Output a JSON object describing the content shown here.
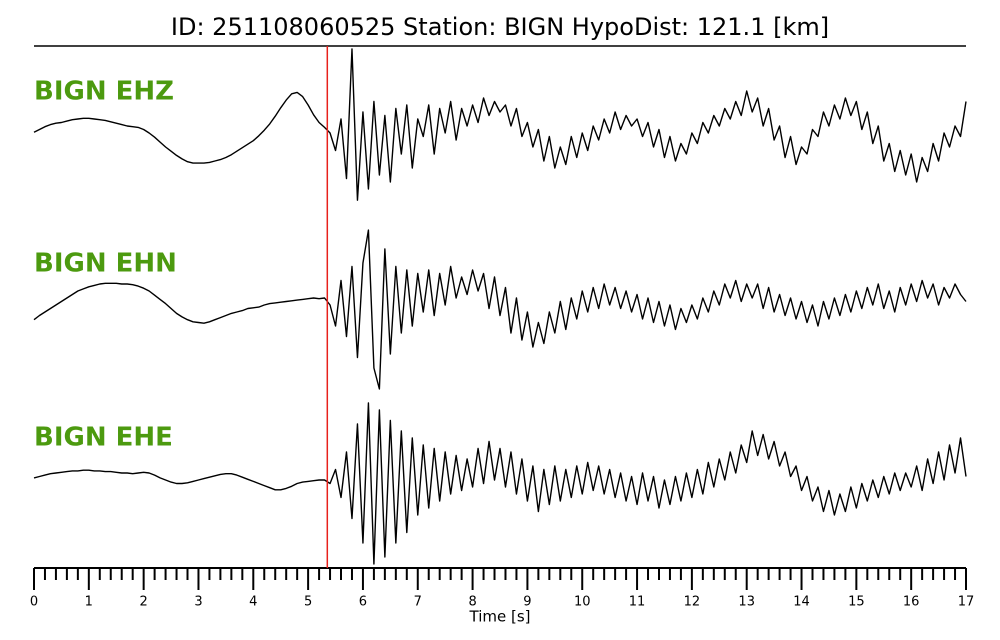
{
  "chart_data": {
    "type": "line",
    "title": "ID: 251108060525   Station: BIGN   HypoDist:   121.1 [km]",
    "xlabel": "Time [s]",
    "xlim": [
      0,
      17
    ],
    "xticks": [
      0,
      1,
      2,
      3,
      4,
      5,
      6,
      7,
      8,
      9,
      10,
      11,
      12,
      13,
      14,
      15,
      16,
      17
    ],
    "xminorticks": [
      0.2,
      0.4,
      0.6,
      0.8,
      1.2,
      1.4,
      1.6,
      1.8,
      2.2,
      2.4,
      2.6,
      2.8,
      3.2,
      3.4,
      3.6,
      3.8,
      4.2,
      4.4,
      4.6,
      4.8,
      5.2,
      5.4,
      5.6,
      5.8,
      6.2,
      6.4,
      6.6,
      6.8,
      7.2,
      7.4,
      7.6,
      7.8,
      8.2,
      8.4,
      8.6,
      8.8,
      9.2,
      9.4,
      9.6,
      9.8,
      10.2,
      10.4,
      10.6,
      10.8,
      11.2,
      11.4,
      11.6,
      11.8,
      12.2,
      12.4,
      12.6,
      12.8,
      13.2,
      13.4,
      13.6,
      13.8,
      14.2,
      14.4,
      14.6,
      14.8,
      15.2,
      15.4,
      15.6,
      15.8,
      16.2,
      16.4,
      16.6,
      16.8
    ],
    "pick_time": 5.35,
    "pick_color": "#e8211b",
    "label_color": "#4c9a0f",
    "x": [
      0,
      0.1,
      0.2,
      0.3,
      0.4,
      0.5,
      0.6,
      0.7,
      0.8,
      0.9,
      1,
      1.1,
      1.2,
      1.3,
      1.4,
      1.5,
      1.6,
      1.7,
      1.8,
      1.9,
      2,
      2.1,
      2.2,
      2.3,
      2.4,
      2.5,
      2.6,
      2.7,
      2.8,
      2.9,
      3,
      3.1,
      3.2,
      3.3,
      3.4,
      3.5,
      3.6,
      3.7,
      3.8,
      3.9,
      4,
      4.1,
      4.2,
      4.3,
      4.4,
      4.5,
      4.6,
      4.7,
      4.8,
      4.9,
      5,
      5.1,
      5.2,
      5.3,
      5.4,
      5.5,
      5.6,
      5.7,
      5.8,
      5.9,
      6,
      6.1,
      6.2,
      6.3,
      6.4,
      6.5,
      6.6,
      6.7,
      6.8,
      6.9,
      7,
      7.1,
      7.2,
      7.3,
      7.4,
      7.5,
      7.6,
      7.7,
      7.8,
      7.9,
      8,
      8.1,
      8.2,
      8.3,
      8.4,
      8.5,
      8.6,
      8.7,
      8.8,
      8.9,
      9,
      9.1,
      9.2,
      9.3,
      9.4,
      9.5,
      9.6,
      9.7,
      9.8,
      9.9,
      10,
      10.1,
      10.2,
      10.3,
      10.4,
      10.5,
      10.6,
      10.7,
      10.8,
      10.9,
      11,
      11.1,
      11.2,
      11.3,
      11.4,
      11.5,
      11.6,
      11.7,
      11.8,
      11.9,
      12,
      12.1,
      12.2,
      12.3,
      12.4,
      12.5,
      12.6,
      12.7,
      12.8,
      12.9,
      13,
      13.1,
      13.2,
      13.3,
      13.4,
      13.5,
      13.6,
      13.7,
      13.8,
      13.9,
      14,
      14.1,
      14.2,
      14.3,
      14.4,
      14.5,
      14.6,
      14.7,
      14.8,
      14.9,
      15,
      15.1,
      15.2,
      15.3,
      15.4,
      15.5,
      15.6,
      15.7,
      15.8,
      15.9,
      16,
      16.1,
      16.2,
      16.3,
      16.4,
      16.5,
      16.6,
      16.7,
      16.8,
      16.9,
      17
    ],
    "series": [
      {
        "name": "BIGN EHZ",
        "color": "#000000",
        "values": [
          0.11,
          0.15,
          0.19,
          0.22,
          0.24,
          0.25,
          0.27,
          0.29,
          0.3,
          0.31,
          0.31,
          0.3,
          0.29,
          0.28,
          0.26,
          0.24,
          0.22,
          0.2,
          0.19,
          0.18,
          0.15,
          0.1,
          0.04,
          -0.03,
          -0.1,
          -0.16,
          -0.22,
          -0.27,
          -0.31,
          -0.33,
          -0.33,
          -0.33,
          -0.32,
          -0.3,
          -0.28,
          -0.25,
          -0.21,
          -0.16,
          -0.11,
          -0.06,
          -0.01,
          0.06,
          0.14,
          0.23,
          0.34,
          0.46,
          0.57,
          0.66,
          0.68,
          0.62,
          0.5,
          0.36,
          0.25,
          0.18,
          0.1,
          -0.15,
          0.3,
          -0.55,
          1.3,
          -0.86,
          0.4,
          -0.7,
          0.55,
          -0.5,
          0.35,
          -0.6,
          0.45,
          -0.2,
          0.5,
          -0.4,
          0.3,
          0.05,
          0.5,
          -0.2,
          0.45,
          0.1,
          0.55,
          0.0,
          0.45,
          0.2,
          0.5,
          0.25,
          0.6,
          0.35,
          0.55,
          0.4,
          0.5,
          0.2,
          0.45,
          0.05,
          0.25,
          -0.1,
          0.15,
          -0.3,
          0.05,
          -0.4,
          -0.1,
          -0.35,
          0.05,
          -0.25,
          0.1,
          -0.15,
          0.2,
          0.0,
          0.3,
          0.1,
          0.4,
          0.15,
          0.35,
          0.2,
          0.3,
          0.05,
          0.25,
          -0.1,
          0.15,
          -0.25,
          0.05,
          -0.3,
          -0.05,
          -0.2,
          0.1,
          -0.05,
          0.25,
          0.1,
          0.35,
          0.2,
          0.45,
          0.3,
          0.55,
          0.35,
          0.7,
          0.4,
          0.6,
          0.2,
          0.45,
          0.0,
          0.2,
          -0.25,
          0.05,
          -0.35,
          -0.1,
          -0.2,
          0.15,
          0.05,
          0.4,
          0.2,
          0.5,
          0.3,
          0.6,
          0.35,
          0.55,
          0.15,
          0.4,
          -0.05,
          0.2,
          -0.3,
          -0.05,
          -0.45,
          -0.15,
          -0.5,
          -0.2,
          -0.6,
          -0.25,
          -0.45,
          -0.05,
          -0.3,
          0.1,
          -0.1,
          0.2,
          0.05,
          0.55
        ]
      },
      {
        "name": "BIGN EHN",
        "color": "#000000",
        "values": [
          -0.21,
          -0.15,
          -0.1,
          -0.05,
          0.0,
          0.05,
          0.1,
          0.15,
          0.2,
          0.23,
          0.26,
          0.28,
          0.3,
          0.31,
          0.31,
          0.31,
          0.3,
          0.3,
          0.29,
          0.27,
          0.24,
          0.2,
          0.14,
          0.08,
          0.02,
          -0.05,
          -0.12,
          -0.17,
          -0.21,
          -0.24,
          -0.25,
          -0.26,
          -0.24,
          -0.21,
          -0.18,
          -0.15,
          -0.12,
          -0.1,
          -0.08,
          -0.05,
          -0.04,
          -0.03,
          0.0,
          0.02,
          0.03,
          0.04,
          0.05,
          0.06,
          0.07,
          0.08,
          0.09,
          0.1,
          0.09,
          0.1,
          0.0,
          -0.3,
          0.35,
          -0.45,
          0.55,
          -0.75,
          0.6,
          1.07,
          -0.9,
          -1.2,
          0.8,
          -0.7,
          0.55,
          -0.4,
          0.5,
          -0.3,
          0.45,
          -0.1,
          0.5,
          -0.15,
          0.45,
          0.0,
          0.55,
          0.1,
          0.4,
          0.15,
          0.5,
          0.2,
          0.45,
          -0.05,
          0.4,
          -0.15,
          0.25,
          -0.4,
          0.1,
          -0.5,
          -0.1,
          -0.6,
          -0.25,
          -0.55,
          -0.1,
          -0.4,
          0.05,
          -0.35,
          0.1,
          -0.2,
          0.2,
          -0.1,
          0.25,
          -0.05,
          0.3,
          0.0,
          0.25,
          -0.05,
          0.2,
          -0.1,
          0.15,
          -0.2,
          0.1,
          -0.25,
          0.05,
          -0.3,
          0.0,
          -0.35,
          -0.05,
          -0.25,
          0.0,
          -0.2,
          0.1,
          -0.1,
          0.2,
          0.0,
          0.3,
          0.1,
          0.35,
          0.05,
          0.3,
          0.1,
          0.3,
          -0.05,
          0.25,
          -0.1,
          0.15,
          -0.15,
          0.1,
          -0.2,
          0.05,
          -0.25,
          0.0,
          -0.3,
          0.05,
          -0.2,
          0.1,
          -0.15,
          0.15,
          -0.1,
          0.2,
          -0.05,
          0.25,
          0.0,
          0.3,
          -0.05,
          0.2,
          -0.1,
          0.25,
          0.0,
          0.3,
          0.05,
          0.35,
          0.1,
          0.3,
          0.0,
          0.25,
          0.1,
          0.3,
          0.15,
          0.05
        ]
      },
      {
        "name": "BIGN EHE",
        "color": "#000000",
        "values": [
          0.03,
          0.05,
          0.07,
          0.09,
          0.1,
          0.11,
          0.12,
          0.13,
          0.13,
          0.14,
          0.14,
          0.13,
          0.13,
          0.12,
          0.12,
          0.11,
          0.1,
          0.1,
          0.09,
          0.1,
          0.11,
          0.1,
          0.07,
          0.03,
          0.0,
          -0.03,
          -0.05,
          -0.05,
          -0.04,
          -0.02,
          0.0,
          0.02,
          0.04,
          0.06,
          0.08,
          0.09,
          0.09,
          0.07,
          0.04,
          0.01,
          -0.02,
          -0.05,
          -0.08,
          -0.11,
          -0.14,
          -0.14,
          -0.12,
          -0.09,
          -0.05,
          -0.03,
          -0.02,
          -0.01,
          0.0,
          0.0,
          -0.05,
          0.15,
          -0.25,
          0.4,
          -0.55,
          0.8,
          -0.9,
          1.1,
          -1.2,
          1.0,
          -1.1,
          0.85,
          -0.9,
          0.7,
          -0.75,
          0.6,
          -0.5,
          0.5,
          -0.4,
          0.45,
          -0.3,
          0.4,
          -0.2,
          0.35,
          -0.15,
          0.3,
          -0.1,
          0.45,
          -0.05,
          0.55,
          0.0,
          0.45,
          -0.1,
          0.4,
          -0.2,
          0.3,
          -0.3,
          0.2,
          -0.45,
          0.15,
          -0.35,
          0.2,
          -0.3,
          0.15,
          -0.25,
          0.2,
          -0.2,
          0.25,
          -0.15,
          0.2,
          -0.2,
          0.15,
          -0.25,
          0.1,
          -0.3,
          0.05,
          -0.35,
          0.1,
          -0.3,
          0.05,
          -0.4,
          0.0,
          -0.35,
          0.05,
          -0.3,
          0.1,
          -0.25,
          0.15,
          -0.2,
          0.25,
          -0.1,
          0.3,
          0.0,
          0.4,
          0.1,
          0.5,
          0.25,
          0.7,
          0.35,
          0.65,
          0.3,
          0.55,
          0.2,
          0.4,
          0.05,
          0.2,
          -0.15,
          0.05,
          -0.3,
          -0.1,
          -0.45,
          -0.15,
          -0.5,
          -0.2,
          -0.45,
          -0.1,
          -0.4,
          -0.05,
          -0.3,
          0.0,
          -0.25,
          0.05,
          -0.2,
          0.1,
          -0.15,
          0.1,
          -0.1,
          0.2,
          -0.15,
          0.3,
          -0.05,
          0.4,
          0.0,
          0.5,
          0.1,
          0.6,
          0.05
        ]
      }
    ]
  }
}
